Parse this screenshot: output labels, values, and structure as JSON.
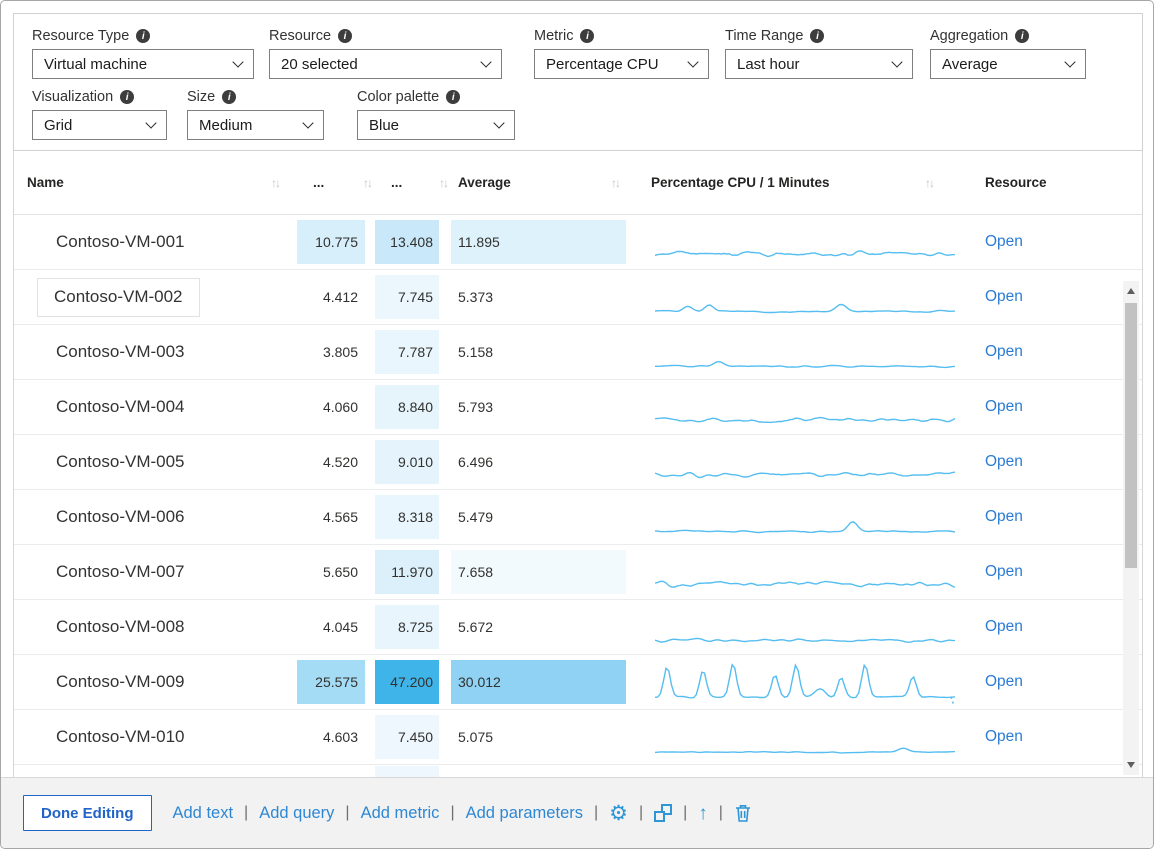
{
  "parameters": {
    "info_glyph": "i",
    "resource_type": {
      "label": "Resource Type",
      "value": "Virtual machine"
    },
    "resource": {
      "label": "Resource",
      "value": "20 selected"
    },
    "metric": {
      "label": "Metric",
      "value": "Percentage CPU"
    },
    "time_range": {
      "label": "Time Range",
      "value": "Last hour"
    },
    "aggregation": {
      "label": "Aggregation",
      "value": "Average"
    },
    "visualization": {
      "label": "Visualization",
      "value": "Grid"
    },
    "size": {
      "label": "Size",
      "value": "Medium"
    },
    "color_palette": {
      "label": "Color palette",
      "value": "Blue"
    }
  },
  "grid": {
    "columns": [
      "Name",
      "...",
      "...",
      "Average",
      "Percentage CPU / 1 Minutes",
      "Resource"
    ],
    "sort_glyph": "↑↓",
    "open_label": "Open",
    "rows": [
      {
        "name": "Contoso-VM-001",
        "min": "10.775",
        "max": "13.408",
        "avg": "11.895",
        "min_bg": "#d7effb",
        "max_bg": "#c9e9fa",
        "avg_bg": "#def2fc",
        "spark": {
          "base": 0.2,
          "noise": 0.12,
          "seed": 11
        }
      },
      {
        "name": "Contoso-VM-002",
        "min": "4.412",
        "max": "7.745",
        "avg": "5.373",
        "max_bg": "#ecf7fd",
        "name_outlined": true,
        "spark": {
          "base": 0.12,
          "noise": 0.04,
          "seed": 2,
          "bumps": [
            [
              0.11,
              0.14,
              1.4
            ],
            [
              0.18,
              0.16,
              1.4
            ],
            [
              0.62,
              0.2,
              1.6
            ]
          ]
        }
      },
      {
        "name": "Contoso-VM-003",
        "min": "3.805",
        "max": "7.787",
        "avg": "5.158",
        "max_bg": "#e9f6fd",
        "spark": {
          "base": 0.12,
          "noise": 0.04,
          "seed": 3,
          "bumps": [
            [
              0.21,
              0.14,
              1.5
            ]
          ]
        }
      },
      {
        "name": "Contoso-VM-004",
        "min": "4.060",
        "max": "8.840",
        "avg": "5.793",
        "max_bg": "#e6f4fc",
        "spark": {
          "base": 0.16,
          "noise": 0.09,
          "seed": 4
        }
      },
      {
        "name": "Contoso-VM-005",
        "min": "4.520",
        "max": "9.010",
        "avg": "6.496",
        "max_bg": "#e5f4fc",
        "spark": {
          "base": 0.16,
          "noise": 0.1,
          "seed": 5
        }
      },
      {
        "name": "Contoso-VM-006",
        "min": "4.565",
        "max": "8.318",
        "avg": "5.479",
        "max_bg": "#eaf6fd",
        "spark": {
          "base": 0.12,
          "noise": 0.04,
          "seed": 6,
          "bumps": [
            [
              0.66,
              0.26,
              1.4
            ]
          ]
        }
      },
      {
        "name": "Contoso-VM-007",
        "min": "5.650",
        "max": "11.970",
        "avg": "7.658",
        "max_bg": "#dbf0fb",
        "avg_bg": "#f2fafe",
        "spark": {
          "base": 0.18,
          "noise": 0.13,
          "seed": 7
        }
      },
      {
        "name": "Contoso-VM-008",
        "min": "4.045",
        "max": "8.725",
        "avg": "5.672",
        "max_bg": "#e8f5fd",
        "spark": {
          "base": 0.14,
          "noise": 0.07,
          "seed": 8
        }
      },
      {
        "name": "Contoso-VM-009",
        "min": "25.575",
        "max": "47.200",
        "avg": "30.012",
        "min_bg": "#a5dcf5",
        "max_bg": "#3eb4e9",
        "avg_bg": "#8fd2f3",
        "spark": {
          "base": 0.1,
          "noise": 0.04,
          "seed": 9,
          "end_drop": true,
          "bumps": [
            [
              0.04,
              0.8
            ],
            [
              0.16,
              0.72
            ],
            [
              0.26,
              0.88
            ],
            [
              0.4,
              0.6
            ],
            [
              0.47,
              0.85
            ],
            [
              0.55,
              0.22,
              1.5
            ],
            [
              0.62,
              0.5
            ],
            [
              0.7,
              0.88
            ],
            [
              0.86,
              0.55
            ]
          ]
        }
      },
      {
        "name": "Contoso-VM-010",
        "min": "4.603",
        "max": "7.450",
        "avg": "5.075",
        "max_bg": "#edf7fd",
        "spark": {
          "base": 0.1,
          "noise": 0.03,
          "seed": 10,
          "bumps": [
            [
              0.83,
              0.1,
              1.5
            ]
          ]
        }
      }
    ],
    "partial_row": {
      "max_bg": "#eef7fd"
    }
  },
  "footer": {
    "done_label": "Done Editing",
    "links": [
      "Add text",
      "Add query",
      "Add metric",
      "Add parameters"
    ],
    "separator": "|",
    "icons": {
      "settings_glyph": "⚙",
      "move_up_glyph": "↑"
    }
  },
  "colors": {
    "accent": "#0078d4",
    "spark_line": "#55bdf0",
    "open_link": "#2b7cd3",
    "footer_link": "#2e87d4",
    "footer_icon": "#2e96d5",
    "heat_max_dark": "#3eb4e9"
  }
}
